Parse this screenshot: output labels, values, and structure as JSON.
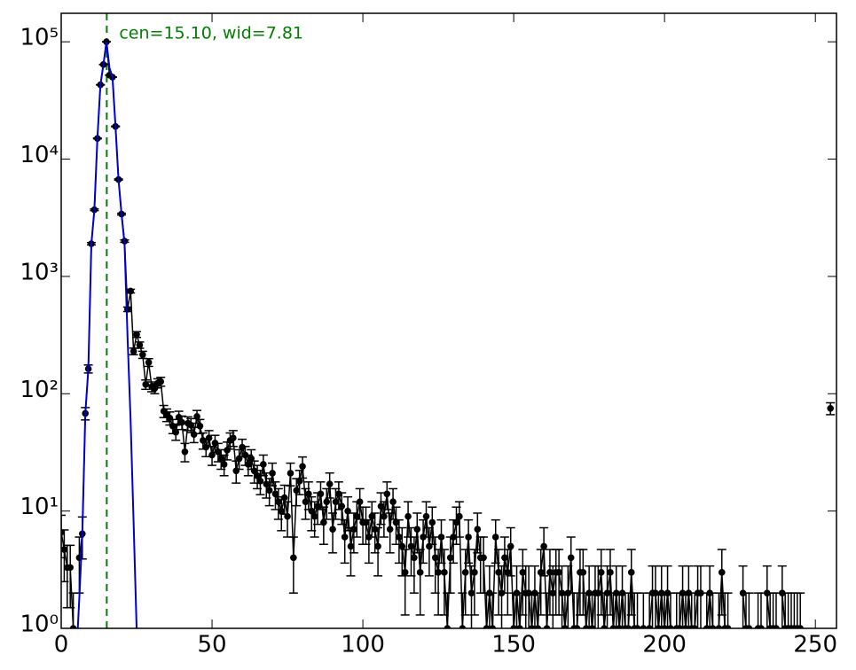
{
  "chart_data": {
    "type": "errorbar",
    "log_y": true,
    "annotation": "cen=15.10, wid=7.81",
    "annotation_color": "#008000",
    "vline": {
      "x": 15.1,
      "color": "#008000",
      "dashed": true
    },
    "xlim": [
      0,
      257
    ],
    "ylim": [
      1,
      175000
    ],
    "xticks": [
      0,
      50,
      100,
      150,
      200,
      250
    ],
    "yticks": [
      {
        "value": 1,
        "label": "10⁰"
      },
      {
        "value": 10,
        "label": "10¹"
      },
      {
        "value": 100,
        "label": "10²"
      },
      {
        "value": 1000,
        "label": "10³"
      },
      {
        "value": 10000,
        "label": "10⁴"
      },
      {
        "value": 100000,
        "label": "10⁵"
      }
    ],
    "series": [
      {
        "type": "errorbar",
        "color": "#000000",
        "x": [
          0,
          1,
          2,
          3,
          4,
          5,
          6,
          7,
          8,
          9,
          10,
          11,
          12,
          13,
          14,
          15,
          16,
          17,
          18,
          19,
          20,
          21,
          22,
          23,
          24,
          25,
          26,
          27,
          28,
          29,
          30,
          31,
          32,
          33,
          34,
          35,
          36,
          37,
          38,
          39,
          40,
          41,
          42,
          43,
          44,
          45,
          46,
          47,
          48,
          49,
          50,
          51,
          52,
          53,
          54,
          55,
          56,
          57,
          58,
          59,
          60,
          61,
          62,
          63,
          64,
          65,
          66,
          67,
          68,
          69,
          70,
          71,
          72,
          73,
          74,
          75,
          76,
          77,
          78,
          79,
          80,
          81,
          82,
          83,
          84,
          85,
          86,
          87,
          88,
          89,
          90,
          91,
          92,
          93,
          94,
          95,
          96,
          97,
          98,
          99,
          100,
          101,
          102,
          103,
          104,
          105,
          106,
          107,
          108,
          109,
          110,
          111,
          112,
          113,
          114,
          115,
          116,
          117,
          118,
          119,
          120,
          121,
          122,
          123,
          124,
          125,
          126,
          127,
          128,
          129,
          130,
          131,
          132,
          133,
          134,
          135,
          136,
          137,
          138,
          139,
          140,
          141,
          142,
          143,
          144,
          145,
          146,
          147,
          148,
          149,
          150,
          151,
          152,
          153,
          154,
          155,
          156,
          157,
          158,
          159,
          160,
          161,
          162,
          163,
          164,
          165,
          166,
          167,
          168,
          169,
          170,
          171,
          172,
          173,
          174,
          175,
          176,
          177,
          178,
          179,
          180,
          181,
          182,
          183,
          184,
          185,
          186,
          187,
          188,
          189,
          190,
          191,
          192,
          193,
          194,
          195,
          196,
          197,
          198,
          199,
          200,
          201,
          202,
          203,
          204,
          205,
          206,
          207,
          208,
          209,
          210,
          211,
          212,
          213,
          214,
          215,
          216,
          217,
          218,
          219,
          220,
          221,
          222,
          223,
          224,
          225,
          226,
          227,
          228,
          229,
          230,
          231,
          232,
          233,
          234,
          235,
          236,
          237,
          238,
          239,
          240,
          241,
          242,
          243,
          244,
          245,
          246,
          247,
          248,
          249,
          250,
          251,
          252,
          253,
          254,
          255
        ],
        "values": [
          6.6,
          4.7,
          3.3,
          3.3,
          1,
          null,
          4,
          6.4,
          68,
          163,
          1900,
          3700,
          15000,
          43000,
          64000,
          100000,
          52000,
          50000,
          19000,
          6700,
          3400,
          2000,
          525,
          750,
          230,
          320,
          260,
          215,
          120,
          185,
          115,
          111,
          123,
          127,
          71,
          66,
          62,
          53,
          47,
          63,
          57,
          32,
          56,
          54,
          45,
          64,
          53,
          40,
          35,
          42,
          30,
          38,
          32,
          28,
          25,
          33,
          40,
          42,
          22,
          28,
          35,
          30,
          25,
          28,
          22,
          20,
          18,
          25,
          17,
          15,
          21,
          14,
          12,
          10,
          13,
          9,
          21,
          4,
          15,
          18,
          24,
          12,
          14,
          10,
          9,
          11,
          14,
          8,
          12,
          17,
          7,
          12,
          14,
          11,
          6,
          10,
          5,
          7,
          9,
          12,
          8,
          8,
          6,
          9,
          7,
          5,
          11,
          9,
          14,
          7,
          12,
          8,
          6,
          5,
          3,
          9,
          5,
          4,
          7,
          3,
          6,
          9,
          5,
          8,
          4,
          3,
          6,
          3,
          1,
          4,
          6,
          8,
          9,
          1,
          3,
          6,
          2,
          3,
          7,
          4,
          4,
          1,
          2,
          1,
          6,
          3,
          2,
          4,
          3,
          5,
          1,
          2,
          1,
          3,
          2,
          2,
          1,
          2,
          1,
          3,
          5,
          1,
          3,
          2,
          3,
          3,
          2,
          1,
          2,
          4,
          1,
          1,
          3,
          3,
          1,
          2,
          1,
          2,
          2,
          3,
          1,
          2,
          3,
          1,
          2,
          1,
          2,
          1,
          1,
          3,
          1,
          1,
          null,
          1,
          null,
          1,
          2,
          2,
          1,
          2,
          1,
          2,
          1,
          null,
          1,
          1,
          2,
          1,
          2,
          1,
          1,
          2,
          2,
          null,
          1,
          2,
          1,
          null,
          1,
          3,
          1,
          1,
          null,
          null,
          null,
          null,
          2,
          1,
          1,
          null,
          null,
          1,
          1,
          null,
          2,
          1,
          1,
          1,
          null,
          2,
          1,
          1,
          1,
          1,
          1,
          1,
          null,
          null,
          null,
          null,
          null,
          null,
          null,
          null,
          null,
          75
        ],
        "errors": [
          2.6,
          2.2,
          1.8,
          1.8,
          1,
          null,
          2,
          2.5,
          8.2,
          12.8,
          43.6,
          60.8,
          122,
          207,
          253,
          316,
          228,
          224,
          138,
          82,
          58,
          45,
          23,
          27,
          15,
          18,
          16,
          15,
          11,
          14,
          11,
          11,
          11,
          11,
          8.4,
          8.1,
          7.9,
          7.3,
          6.9,
          7.9,
          7.5,
          5.7,
          7.5,
          7.3,
          6.7,
          8,
          7.3,
          6.3,
          5.9,
          6.5,
          5.5,
          6.2,
          5.7,
          5.3,
          5,
          5.7,
          6.3,
          6.5,
          4.7,
          5.3,
          5.9,
          5.5,
          5,
          5.3,
          4.7,
          4.5,
          4.2,
          5,
          4.1,
          3.9,
          4.6,
          3.7,
          3.5,
          3.2,
          3.6,
          3,
          4.6,
          2,
          3.9,
          4.2,
          4.9,
          3.5,
          3.7,
          3.2,
          3,
          3.3,
          3.7,
          2.8,
          3.5,
          4.1,
          2.6,
          3.5,
          3.7,
          3.3,
          2.4,
          3.2,
          2.2,
          2.6,
          3,
          3.5,
          2.8,
          2.8,
          2.4,
          3,
          2.6,
          2.2,
          3.3,
          3,
          3.7,
          2.6,
          3.5,
          2.8,
          2.4,
          2.2,
          1.7,
          3,
          2.2,
          2,
          2.6,
          1.7,
          2.4,
          3,
          2.2,
          2.8,
          2,
          1.7,
          2.4,
          1.7,
          1,
          2,
          2.4,
          2.8,
          3,
          1,
          1.7,
          2.4,
          1.4,
          1.7,
          2.6,
          2,
          2,
          1,
          1.4,
          1,
          2.4,
          1.7,
          1.4,
          2,
          1.7,
          2.2,
          1,
          1.4,
          1,
          1.7,
          1.4,
          1.4,
          1,
          1.4,
          1,
          1.7,
          2.2,
          1,
          1.7,
          1.4,
          1.7,
          1.7,
          1.4,
          1,
          1.4,
          2,
          1,
          1,
          1.7,
          1.7,
          1,
          1.4,
          1,
          1.4,
          1.4,
          1.7,
          1,
          1.4,
          1.7,
          1,
          1.4,
          1,
          1.4,
          1,
          1,
          1.7,
          1,
          1,
          null,
          1,
          null,
          1,
          1.4,
          1.4,
          1,
          1.4,
          1,
          1.4,
          1,
          null,
          1,
          1,
          1.4,
          1,
          1.4,
          1,
          1,
          1.4,
          1.4,
          null,
          1,
          1.4,
          1,
          null,
          1,
          1.7,
          1,
          1,
          null,
          null,
          null,
          null,
          1.4,
          1,
          1,
          null,
          null,
          1,
          1,
          null,
          1.4,
          1,
          1,
          1,
          null,
          1.4,
          1,
          1,
          1,
          1,
          1,
          1,
          null,
          null,
          null,
          null,
          null,
          null,
          null,
          null,
          null,
          8.7
        ]
      },
      {
        "type": "line",
        "color": "#0000cc",
        "x": [
          5.5,
          6,
          7,
          8,
          9,
          10,
          11,
          12,
          13,
          14,
          15,
          16,
          17,
          18,
          19,
          20,
          21,
          22,
          23,
          24,
          25
        ],
        "values": [
          1,
          1.8,
          6.4,
          68,
          163,
          1900,
          3700,
          15000,
          43000,
          64000,
          100000,
          60000,
          50000,
          19000,
          6700,
          3400,
          1900,
          300,
          60,
          8,
          1
        ]
      }
    ]
  }
}
